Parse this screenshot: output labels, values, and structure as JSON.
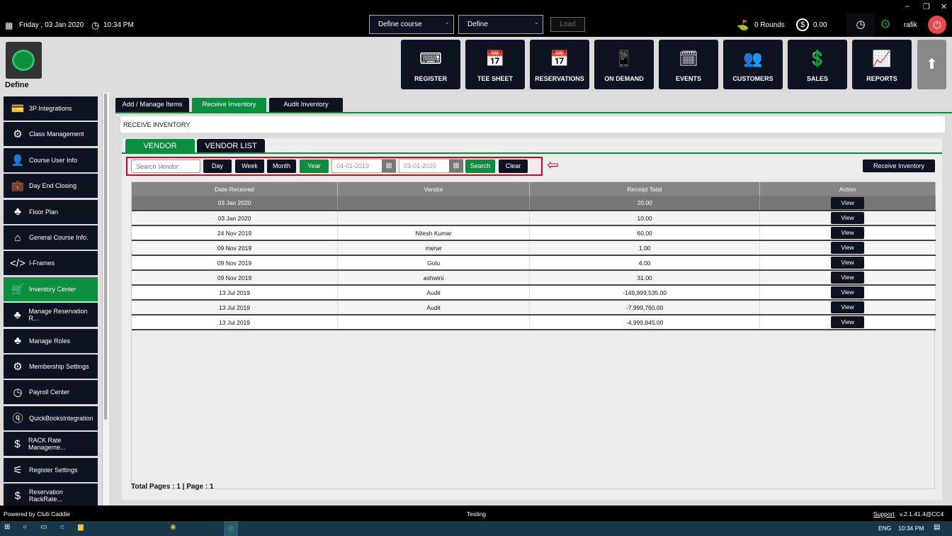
{
  "window": {
    "minimize": "–",
    "restore": "❐",
    "close": "✕"
  },
  "header": {
    "date": "Friday , 03 Jan 2020",
    "time": "10:34 PM",
    "course_select": "Define course",
    "define_select": "Define",
    "load_label": "Load",
    "rounds": "0 Rounds",
    "balance": "0.00",
    "user": "rafik"
  },
  "logo": {
    "label": "Define"
  },
  "nav": [
    {
      "label": "REGISTER",
      "icon": "barcode-scanner-icon",
      "g": "⌨"
    },
    {
      "label": "TEE SHEET",
      "icon": "calendar-list-icon",
      "g": "📅"
    },
    {
      "label": "RESERVATIONS",
      "icon": "calendar-list-icon",
      "g": "📅"
    },
    {
      "label": "ON DEMAND",
      "icon": "mobile-icon",
      "g": "📱"
    },
    {
      "label": "EVENTS",
      "icon": "calendar-edit-icon",
      "g": "🗓"
    },
    {
      "label": "CUSTOMERS",
      "icon": "users-icon",
      "g": "👥"
    },
    {
      "label": "SALES",
      "icon": "money-icon",
      "g": "💲"
    },
    {
      "label": "REPORTS",
      "icon": "report-icon",
      "g": "📈"
    }
  ],
  "sidebar": [
    {
      "label": "3P Integrations",
      "g": "💳"
    },
    {
      "label": "Class Management",
      "g": "⚙"
    },
    {
      "label": "Course User Info",
      "g": "👤"
    },
    {
      "label": "Day End Closing",
      "g": "💼"
    },
    {
      "label": "Floor Plan",
      "g": "♣"
    },
    {
      "label": "General Course Info.",
      "g": "⌂"
    },
    {
      "label": "I-Frames",
      "g": "</>"
    },
    {
      "label": "Inventory Center",
      "g": "🛒",
      "active": true
    },
    {
      "label": "Manage Reservation R...",
      "g": "♣"
    },
    {
      "label": "Manage Roles",
      "g": "♣"
    },
    {
      "label": "Membership Settings",
      "g": "⚙"
    },
    {
      "label": "Payroll Center",
      "g": "◷"
    },
    {
      "label": "QuickBooksIntegration",
      "g": "ⓠ"
    },
    {
      "label": "RACK Rate Manageme...",
      "g": "$"
    },
    {
      "label": "Register Settings",
      "g": "⚟"
    },
    {
      "label": "Reservation RackRate...",
      "g": "$"
    }
  ],
  "tabs": [
    "Add / Manage Items",
    "Receive Inventory",
    "Audit Inventory"
  ],
  "section_title": "RECEIVE INVENTORY",
  "subtabs": [
    "VENDOR RECEIPTS",
    "VENDOR LIST"
  ],
  "filters": {
    "search_placeholder": "Search Vendor",
    "day": "Day",
    "week": "Week",
    "month": "Month",
    "year": "Year",
    "from": "04-01-2019",
    "to": "03-01-2020",
    "search": "Search",
    "clear": "Clear",
    "receive": "Receive Inventory"
  },
  "table": {
    "columns": [
      "Date Received",
      "Vendor",
      "Receipt Total",
      "Action"
    ],
    "rows": [
      [
        "03 Jan 2020",
        "",
        "20.00"
      ],
      [
        "03 Jan 2020",
        "",
        "10.00"
      ],
      [
        "24 Nov 2019",
        "Nitesh Kumar",
        "60.00"
      ],
      [
        "09 Nov 2019",
        "rrwrwr",
        "1.00"
      ],
      [
        "09 Nov 2019",
        "Golu",
        "4.00"
      ],
      [
        "09 Nov 2019",
        "ashwini",
        "31.00"
      ],
      [
        "13 Jul 2019",
        "Audit",
        "-149,999,535.00"
      ],
      [
        "13 Jul 2019",
        "Audit",
        "-7,999,760.00"
      ],
      [
        "13 Jul 2019",
        "",
        "-4,999,845.00"
      ]
    ],
    "action_label": "View"
  },
  "pagination": "Total Pages : 1 | Page : 1",
  "footer": {
    "powered": "Powered by Club Caddie",
    "env": "Testing",
    "support": "Support",
    "version": "v.2.1.41.4@CC4"
  },
  "taskbar": {
    "lang": "ENG",
    "time": "10:34 PM"
  },
  "colors": {
    "accent": "#0a8f3e",
    "dark": "#0d1321",
    "power": "#e84a4a",
    "highlight_box": "#e0001b"
  }
}
